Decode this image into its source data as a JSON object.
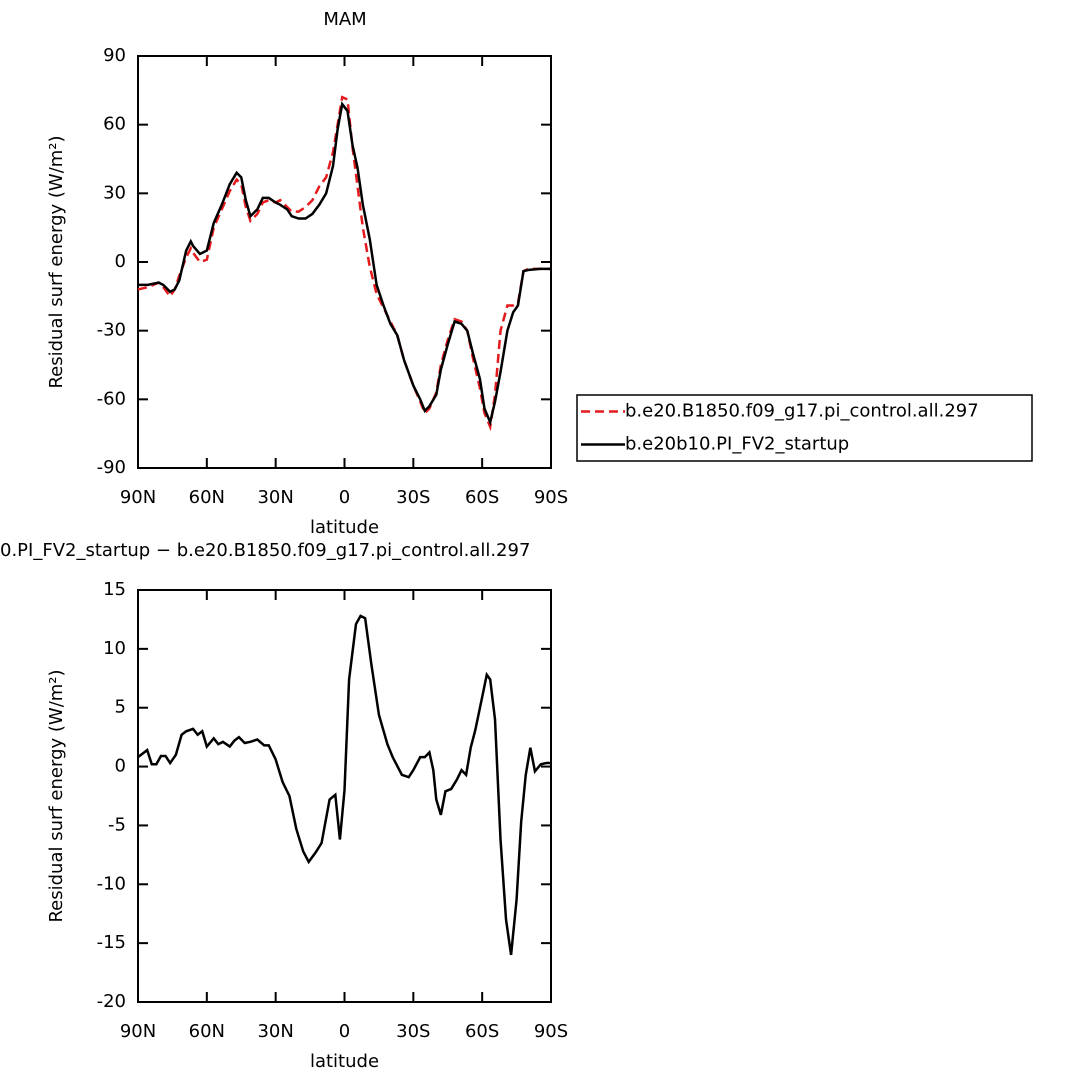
{
  "chart_data": [
    {
      "type": "line",
      "title": "MAM",
      "x_label": "latitude",
      "y_label": "Residual surf energy (W/m²)",
      "xlim": [
        90,
        -90
      ],
      "ylim": [
        -90,
        90
      ],
      "xticks": [
        {
          "value": 90,
          "label": "90N"
        },
        {
          "value": 60,
          "label": "60N"
        },
        {
          "value": 30,
          "label": "30N"
        },
        0,
        {
          "value": -30,
          "label": "30S"
        },
        {
          "value": -60,
          "label": "60S"
        },
        {
          "value": -90,
          "label": "90S"
        }
      ],
      "yticks": [
        -90,
        -60,
        -30,
        0,
        30,
        60,
        90
      ],
      "legend": "right",
      "x": [
        90,
        85.7,
        81,
        79,
        76,
        74,
        72,
        69,
        67,
        66,
        63,
        60,
        57,
        53.5,
        50,
        47,
        45,
        43,
        41,
        38,
        35.6,
        33,
        30,
        28,
        25,
        23,
        20,
        17,
        14,
        11,
        8,
        5,
        3,
        1,
        -1.3,
        -3.5,
        -5.7,
        -8,
        -11,
        -14,
        -17,
        -20,
        -23,
        -26,
        -30,
        -33,
        -35,
        -37,
        -40,
        -42,
        -45,
        -48,
        -51,
        -53.5,
        -56,
        -59,
        -61,
        -63.5,
        -65.6,
        -68,
        -71,
        -73.5,
        -75.6,
        -78,
        -80,
        -85,
        -90
      ],
      "series": [
        {
          "name": "b.e20.B1850.f09_g17.pi_control.all.297",
          "color": "#e41a1c",
          "line_style": "dashed",
          "values": [
            -12,
            -11,
            -9,
            -11,
            -15,
            -12,
            -6,
            2,
            6,
            4,
            0,
            1,
            15,
            23,
            31,
            36,
            34,
            24,
            18,
            21,
            26,
            27,
            26,
            27,
            24,
            22,
            22,
            24,
            27,
            33,
            37,
            48,
            60,
            72,
            71,
            50,
            33,
            15,
            -2,
            -14,
            -20,
            -26,
            -32,
            -43,
            -54,
            -61,
            -66,
            -64,
            -57,
            -45,
            -34,
            -25,
            -26,
            -30,
            -42,
            -55,
            -66,
            -72,
            -58,
            -30,
            -19,
            -19,
            -18,
            -4,
            -3,
            -3,
            -3
          ]
        },
        {
          "name": "b.e20b10.PI_FV2_startup",
          "color": "#000000",
          "line_style": "solid",
          "values": [
            -10,
            -10,
            -9,
            -10,
            -13,
            -12,
            -8,
            5,
            9,
            7,
            3.5,
            5,
            17,
            25,
            34,
            39,
            37,
            27,
            20,
            23,
            28,
            28,
            26,
            25,
            23,
            20,
            19,
            19,
            21,
            25,
            30,
            42,
            58,
            69,
            66,
            51,
            41,
            25,
            10,
            -10,
            -19,
            -27,
            -32,
            -43,
            -54,
            -60,
            -65,
            -63,
            -58,
            -47,
            -36,
            -26,
            -27,
            -30,
            -40,
            -51,
            -64,
            -70,
            -61,
            -48,
            -30,
            -22,
            -19,
            -4,
            -3.5,
            -3,
            -3
          ]
        }
      ]
    },
    {
      "type": "line",
      "title": "0.PI_FV2_startup − b.e20.B1850.f09_g17.pi_control.all.297",
      "x_label": "latitude",
      "y_label": "Residual surf energy (W/m²)",
      "xlim": [
        90,
        -90
      ],
      "ylim": [
        -20,
        15
      ],
      "xticks": [
        {
          "value": 90,
          "label": "90N"
        },
        {
          "value": 60,
          "label": "60N"
        },
        {
          "value": 30,
          "label": "30N"
        },
        0,
        {
          "value": -30,
          "label": "30S"
        },
        {
          "value": -60,
          "label": "60S"
        },
        {
          "value": -90,
          "label": "90S"
        }
      ],
      "yticks": [
        -20,
        -15,
        -10,
        -5,
        0,
        5,
        10,
        15
      ],
      "x": [
        90,
        86,
        84,
        82,
        80,
        78,
        76,
        73.5,
        71,
        69,
        66,
        64,
        62,
        60,
        57,
        55,
        53,
        50,
        48,
        46,
        43.5,
        41,
        38,
        35,
        33,
        30,
        27,
        24,
        21,
        18,
        15.6,
        12.6,
        10,
        6.5,
        4,
        2,
        0,
        -2,
        -5,
        -7,
        -9,
        -11.7,
        -15,
        -18.7,
        -21,
        -25,
        -28,
        -30,
        -33,
        -35,
        -37,
        -38.7,
        -40,
        -42,
        -44,
        -46.5,
        -49,
        -51,
        -53,
        -55,
        -57,
        -60,
        -62,
        -63.5,
        -65.6,
        -68,
        -70.4,
        -72.6,
        -75,
        -77,
        -79,
        -81,
        -83,
        -85.6,
        -88,
        -90
      ],
      "series": [
        {
          "color": "#000000",
          "line_style": "solid",
          "values": [
            0.8,
            1.4,
            0.2,
            0.2,
            0.9,
            0.9,
            0.3,
            1.0,
            2.7,
            3.0,
            3.2,
            2.7,
            3.0,
            1.7,
            2.4,
            1.9,
            2.1,
            1.7,
            2.2,
            2.5,
            2.0,
            2.1,
            2.3,
            1.8,
            1.8,
            0.6,
            -1.3,
            -2.5,
            -5.3,
            -7.2,
            -8.1,
            -7.3,
            -6.5,
            -2.8,
            -2.4,
            -6.2,
            -2.0,
            7.4,
            12.1,
            12.8,
            12.6,
            8.7,
            4.4,
            1.9,
            0.8,
            -0.7,
            -0.9,
            -0.3,
            0.8,
            0.8,
            1.2,
            -0.3,
            -2.8,
            -4.1,
            -2.1,
            -1.9,
            -1.1,
            -0.3,
            -0.7,
            1.6,
            3.1,
            5.9,
            7.8,
            7.4,
            4.0,
            -6.2,
            -13,
            -16,
            -11.3,
            -4.7,
            -0.7,
            1.6,
            -0.4,
            0.2,
            0.3,
            0.3
          ]
        }
      ]
    }
  ]
}
